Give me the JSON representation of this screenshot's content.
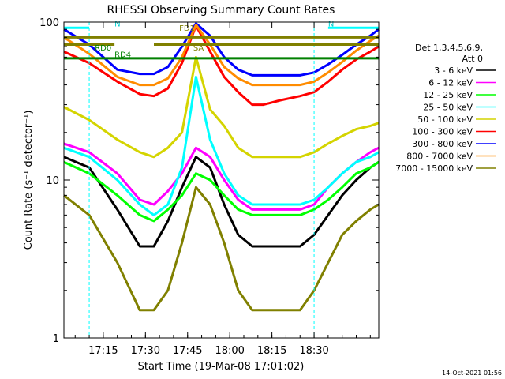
{
  "chart_data": {
    "type": "line",
    "title": "RHESSI Observing Summary Count Rates",
    "xlabel": "Start Time (19-Mar-08 17:01:02)",
    "ylabel": "Count Rate (s⁻¹ detector⁻¹)",
    "ylog": true,
    "ylim": [
      1,
      100
    ],
    "xlim_minutes_after_17_00": [
      1,
      113
    ],
    "x_tick_labels": [
      "17:15",
      "17:30",
      "17:45",
      "18:00",
      "18:15",
      "18:30"
    ],
    "x_tick_minutes": [
      15,
      30,
      45,
      60,
      75,
      90
    ],
    "y_tick_labels": [
      "1",
      "10",
      "100"
    ],
    "y_tick_values": [
      1,
      10,
      100
    ],
    "legend_header": [
      "Det 1,3,4,5,6,9,",
      "Att 0"
    ],
    "legend_position": "right",
    "timestamp": "14-Oct-2021 01:56",
    "x_knots_minutes": [
      1,
      10,
      20,
      28,
      33,
      38,
      43,
      48,
      53,
      58,
      63,
      68,
      72,
      78,
      85,
      90,
      95,
      100,
      105,
      110,
      113
    ],
    "series": [
      {
        "name": "3 - 6 keV",
        "color": "#000000",
        "values": [
          14,
          12,
          6.5,
          3.8,
          3.8,
          5.5,
          9,
          14,
          12,
          7,
          4.5,
          3.8,
          3.8,
          3.8,
          3.8,
          4.5,
          6,
          8,
          10,
          12,
          13
        ]
      },
      {
        "name": "6 - 12 keV",
        "color": "#ff00ff",
        "values": [
          17,
          15,
          11,
          7.5,
          7,
          8.5,
          11,
          16,
          14,
          10,
          7.5,
          6.5,
          6.5,
          6.5,
          6.5,
          7,
          9,
          11,
          13,
          15,
          16
        ]
      },
      {
        "name": "12 - 25 keV",
        "color": "#00ff00",
        "values": [
          13,
          11,
          8,
          6,
          5.5,
          6.5,
          8,
          11,
          10,
          8,
          6.5,
          6,
          6,
          6,
          6,
          6.5,
          7.5,
          9,
          11,
          12,
          13
        ]
      },
      {
        "name": "25 - 50 keV",
        "color": "#00ffff",
        "values": [
          16,
          14,
          10,
          7,
          6,
          7,
          12,
          45,
          18,
          11,
          8,
          7,
          7,
          7,
          7,
          7.5,
          9,
          11,
          13,
          14,
          15
        ]
      },
      {
        "name": "50 - 100 keV",
        "color": "#d4d400",
        "values": [
          29,
          24,
          18,
          15,
          14,
          16,
          20,
          60,
          28,
          22,
          16,
          14,
          14,
          14,
          14,
          15,
          17,
          19,
          21,
          22,
          23
        ]
      },
      {
        "name": "100 - 300 keV",
        "color": "#ff0000",
        "values": [
          65,
          55,
          42,
          35,
          34,
          38,
          55,
          95,
          65,
          45,
          36,
          30,
          30,
          32,
          34,
          36,
          42,
          50,
          58,
          65,
          70
        ]
      },
      {
        "name": "300 - 800 keV",
        "color": "#0000ff",
        "values": [
          90,
          72,
          50,
          47,
          47,
          52,
          70,
          98,
          82,
          60,
          50,
          46,
          46,
          46,
          46,
          48,
          54,
          62,
          72,
          82,
          90
        ]
      },
      {
        "name": "800 - 7000 keV",
        "color": "#ff8c00",
        "values": [
          80,
          63,
          45,
          40,
          40,
          44,
          60,
          96,
          72,
          52,
          44,
          40,
          40,
          40,
          40,
          42,
          48,
          56,
          66,
          76,
          82
        ]
      },
      {
        "name": "7000 - 15000 keV",
        "color": "#808000",
        "values": [
          8,
          6,
          3,
          1.5,
          1.5,
          2,
          4,
          9,
          7,
          4,
          2,
          1.5,
          1.5,
          1.5,
          1.5,
          2,
          3,
          4.5,
          5.5,
          6.5,
          7
        ]
      }
    ],
    "annotations": [
      {
        "label": "N",
        "minute": 19,
        "value": 94,
        "color": "#00cccc"
      },
      {
        "label": "N",
        "minute": 95,
        "value": 94,
        "color": "#00cccc"
      },
      {
        "label": "FD1",
        "minute": 42,
        "value": 88,
        "color": "#808000"
      },
      {
        "label": "RD0",
        "minute": 12,
        "value": 66,
        "color": "#008000"
      },
      {
        "label": "RD4",
        "minute": 19,
        "value": 60,
        "color": "#008000"
      },
      {
        "label": "SA",
        "minute": 47,
        "value": 66,
        "color": "#808000"
      }
    ],
    "state_bars": [
      {
        "name": "FD1 bar",
        "color": "#808000",
        "segments": [
          [
            1,
            113
          ]
        ],
        "value": 80
      },
      {
        "name": "RD0 bar",
        "color": "#008000",
        "segments": [
          [
            1,
            113
          ]
        ],
        "value": 59
      },
      {
        "name": "SA bar",
        "color": "#808000",
        "segments": [
          [
            1,
            19
          ],
          [
            33,
            113
          ]
        ],
        "value": 72
      },
      {
        "name": "N bar",
        "color": "#00ffff",
        "segments": [
          [
            1,
            10
          ],
          [
            95,
            113
          ]
        ],
        "value": 92
      }
    ],
    "night_boundaries_minutes": [
      1,
      10,
      90,
      113
    ]
  }
}
